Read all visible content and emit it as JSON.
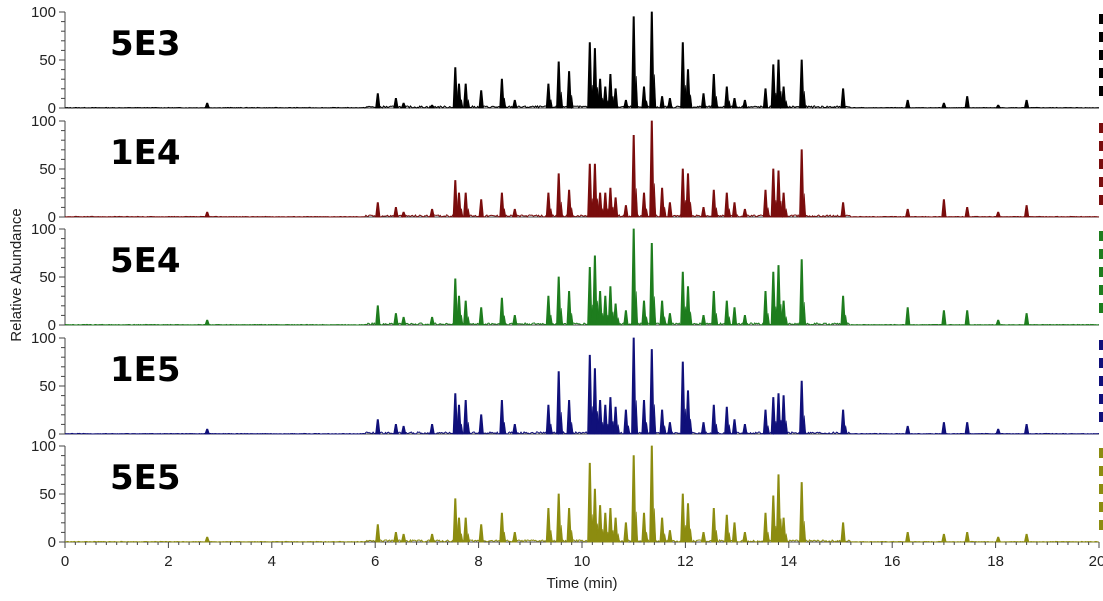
{
  "chart_data": {
    "type": "line",
    "title": "",
    "xlabel": "Time (min)",
    "ylabel": "Relative Abundance",
    "xlim": [
      0,
      20
    ],
    "ylim": [
      0,
      100
    ],
    "x_ticks": [
      "0",
      "2",
      "4",
      "6",
      "8",
      "10",
      "12",
      "14",
      "16",
      "18",
      "20"
    ],
    "y_ticks": [
      "0",
      "50",
      "100"
    ],
    "peaks_t": [
      2.75,
      6.05,
      6.4,
      6.55,
      7.1,
      7.55,
      7.62,
      7.75,
      8.05,
      8.45,
      8.7,
      9.35,
      9.55,
      9.75,
      10.15,
      10.25,
      10.35,
      10.45,
      10.55,
      10.65,
      10.85,
      11.0,
      11.2,
      11.35,
      11.55,
      11.7,
      11.95,
      12.05,
      12.35,
      12.55,
      12.8,
      12.95,
      13.15,
      13.55,
      13.7,
      13.8,
      13.9,
      14.25,
      15.05,
      16.3,
      17.0,
      17.45,
      18.05,
      18.6
    ],
    "series": [
      {
        "name": "5E3",
        "color": "#000000",
        "values": [
          5,
          15,
          10,
          5,
          3,
          42,
          25,
          25,
          18,
          30,
          8,
          25,
          48,
          38,
          68,
          62,
          30,
          22,
          35,
          20,
          8,
          95,
          22,
          100,
          12,
          10,
          68,
          40,
          15,
          35,
          22,
          10,
          8,
          20,
          45,
          50,
          22,
          50,
          20,
          8,
          5,
          12,
          3,
          8
        ]
      },
      {
        "name": "1E4",
        "color": "#7a0d0d",
        "values": [
          5,
          15,
          10,
          5,
          8,
          38,
          25,
          25,
          18,
          25,
          8,
          25,
          45,
          28,
          55,
          55,
          25,
          25,
          30,
          20,
          12,
          85,
          25,
          100,
          30,
          15,
          50,
          45,
          10,
          28,
          25,
          15,
          8,
          28,
          50,
          48,
          25,
          70,
          15,
          8,
          18,
          10,
          5,
          12
        ]
      },
      {
        "name": "5E4",
        "color": "#1e7d1e",
        "values": [
          5,
          20,
          12,
          8,
          8,
          48,
          30,
          25,
          18,
          28,
          10,
          30,
          50,
          35,
          60,
          72,
          35,
          30,
          40,
          22,
          15,
          100,
          25,
          85,
          25,
          12,
          55,
          40,
          10,
          35,
          25,
          18,
          10,
          35,
          55,
          62,
          25,
          68,
          30,
          18,
          15,
          15,
          5,
          12
        ]
      },
      {
        "name": "1E5",
        "color": "#10107a",
        "values": [
          5,
          15,
          10,
          8,
          10,
          42,
          30,
          35,
          20,
          35,
          10,
          30,
          65,
          35,
          82,
          68,
          35,
          30,
          38,
          28,
          25,
          100,
          35,
          88,
          25,
          12,
          75,
          45,
          12,
          30,
          28,
          15,
          10,
          25,
          38,
          42,
          40,
          55,
          25,
          8,
          12,
          12,
          5,
          10
        ]
      },
      {
        "name": "5E5",
        "color": "#8c8c10",
        "values": [
          5,
          18,
          10,
          8,
          8,
          45,
          25,
          25,
          18,
          30,
          10,
          35,
          50,
          35,
          82,
          55,
          38,
          30,
          35,
          25,
          20,
          90,
          30,
          100,
          25,
          12,
          50,
          40,
          10,
          35,
          28,
          20,
          10,
          30,
          48,
          70,
          25,
          62,
          20,
          10,
          8,
          10,
          5,
          8
        ]
      }
    ]
  }
}
